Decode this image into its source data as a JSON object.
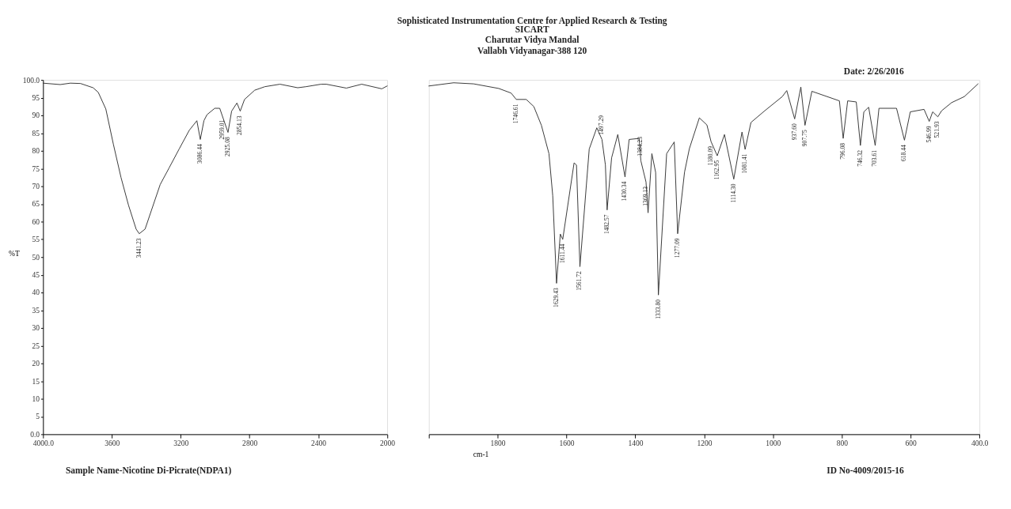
{
  "chart_data": [
    {
      "type": "line",
      "ylabel": "%T",
      "x": [
        4000,
        3900,
        3841,
        3782,
        3709,
        3679,
        3635,
        3591,
        3547,
        3503,
        3459,
        3441,
        3407,
        3370,
        3319,
        3267,
        3209,
        3150,
        3106,
        3086,
        3065,
        3047,
        3002,
        2973,
        2959,
        2925,
        2904,
        2873,
        2854,
        2829,
        2770,
        2711,
        2623,
        2520,
        2472,
        2384,
        2354,
        2237,
        2148,
        2031,
        2000
      ],
      "series": [
        {
          "color": "#333333",
          "values": [
            99.1,
            98.7,
            99.1,
            99.0,
            97.8,
            96.5,
            91.8,
            81.8,
            72.5,
            64.6,
            57.9,
            56.6,
            57.9,
            63.2,
            70.5,
            75.2,
            80.5,
            85.8,
            88.5,
            83.2,
            88.5,
            90.2,
            92.0,
            92.0,
            90.0,
            85.2,
            91.2,
            93.5,
            91.2,
            94.5,
            97.1,
            98.1,
            98.8,
            97.8,
            98.1,
            98.8,
            98.8,
            97.7,
            98.8,
            97.5,
            98.3
          ]
        }
      ],
      "xlim": [
        4000,
        2000
      ],
      "xticks": [
        {
          "value": 4000,
          "label": "4000.0"
        },
        3600,
        3200,
        2800,
        2400,
        2000
      ],
      "ylim": [
        0,
        100
      ],
      "yticks": [
        {
          "value": 0,
          "label": "0.0"
        },
        5,
        10,
        15,
        20,
        25,
        30,
        35,
        40,
        45,
        50,
        55,
        60,
        65,
        70,
        75,
        80,
        85,
        90,
        95,
        {
          "value": 100,
          "label": "100.0"
        }
      ],
      "grid": false,
      "legend": false,
      "marker": "none",
      "line_style": "solid",
      "annotations": [
        {
          "text": "3441.23",
          "x": 3441,
          "y": 56.6
        },
        {
          "text": "3086.44",
          "x": 3086,
          "y": 83.2
        },
        {
          "text": "2959.01",
          "x": 2959,
          "y": 90.0
        },
        {
          "text": "2925.08",
          "x": 2925,
          "y": 85.2
        },
        {
          "text": "2854.13",
          "x": 2854,
          "y": 91.2
        },
        "Sample Name-Nicotine Di-Picrate(NDPA1)"
      ]
    },
    {
      "type": "line",
      "title": "Sophisticated Instrumentation Centre for Applied Research & Testing",
      "subtitle": "SICART\nCharutar Vidya Mandal\nVallabh Vidyanagar-388 120",
      "xlabel": "cm-1",
      "x": [
        2000,
        1928,
        1870,
        1797,
        1761,
        1746,
        1717,
        1695,
        1673,
        1651,
        1640,
        1629,
        1618,
        1611,
        1578,
        1571,
        1561,
        1534,
        1512,
        1497,
        1487,
        1482,
        1469,
        1451,
        1430,
        1418,
        1389,
        1384,
        1369,
        1363,
        1352,
        1341,
        1333,
        1309,
        1287,
        1277,
        1257,
        1243,
        1214,
        1192,
        1180,
        1162,
        1141,
        1114,
        1090,
        1081,
        1064,
        1024,
        973,
        960,
        937,
        919,
        907,
        887,
        807,
        796,
        783,
        758,
        746,
        736,
        722,
        703,
        692,
        641,
        618,
        601,
        561,
        546,
        536,
        521,
        510,
        481,
        444,
        404
      ],
      "series": [
        {
          "color": "#333333",
          "values": [
            98.3,
            99.2,
            98.9,
            97.6,
            96.3,
            94.5,
            94.5,
            92.5,
            87.2,
            79.2,
            67.3,
            42.6,
            56.5,
            55.0,
            76.6,
            76.0,
            47.3,
            80.5,
            86.5,
            83.2,
            76.0,
            63.3,
            78.0,
            84.6,
            72.6,
            83.2,
            83.5,
            77.2,
            71.2,
            62.5,
            79.2,
            73.9,
            39.3,
            79.2,
            82.5,
            56.6,
            74.0,
            80.6,
            89.3,
            87.3,
            82.6,
            78.6,
            84.6,
            72.0,
            85.3,
            80.4,
            88.0,
            91.3,
            95.3,
            97.0,
            89.0,
            98.0,
            87.2,
            96.8,
            94.1,
            83.5,
            94.1,
            93.8,
            81.5,
            91.0,
            92.3,
            81.5,
            92.0,
            92.0,
            83.0,
            91.0,
            91.7,
            88.3,
            91.0,
            89.6,
            91.3,
            93.6,
            95.3,
            98.9
          ]
        }
      ],
      "xlim": [
        2000,
        400
      ],
      "xticks": [
        {
          "value": 2000,
          "label": null
        },
        1800,
        1600,
        1400,
        1200,
        1000,
        800,
        600,
        {
          "value": 400,
          "label": "400.0"
        }
      ],
      "ylim": [
        0,
        100
      ],
      "tick_labels": "x",
      "grid": false,
      "legend": false,
      "marker": "none",
      "line_style": "solid",
      "annotations": [
        {
          "text": "1746.61",
          "x": 1746,
          "y": 94.5
        },
        {
          "text": "1629.43",
          "x": 1629,
          "y": 42.6
        },
        {
          "text": "1611.44",
          "x": 1611,
          "y": 55.0
        },
        {
          "text": "1561.72",
          "x": 1561,
          "y": 47.3
        },
        {
          "text": "1497.29",
          "x": 1497,
          "y": 83.2
        },
        {
          "text": "1482.57",
          "x": 1482,
          "y": 63.3
        },
        {
          "text": "1430.34",
          "x": 1430,
          "y": 72.6
        },
        {
          "text": "1384.23",
          "x": 1384,
          "y": 77.2
        },
        {
          "text": "1369.13",
          "x": 1369,
          "y": 71.2
        },
        {
          "text": "1333.80",
          "x": 1333,
          "y": 39.3
        },
        {
          "text": "1277.09",
          "x": 1277,
          "y": 56.6
        },
        {
          "text": "1180.09",
          "x": 1180,
          "y": 82.6
        },
        {
          "text": "1162.95",
          "x": 1162,
          "y": 78.6
        },
        {
          "text": "1114.30",
          "x": 1114,
          "y": 72.0
        },
        {
          "text": "1081.41",
          "x": 1081,
          "y": 80.4
        },
        {
          "text": "937.60",
          "x": 937,
          "y": 89.0
        },
        {
          "text": "907.75",
          "x": 907,
          "y": 87.2
        },
        {
          "text": "796.08",
          "x": 796,
          "y": 83.5
        },
        {
          "text": "746.32",
          "x": 746,
          "y": 81.5
        },
        {
          "text": "703.61",
          "x": 703,
          "y": 81.5
        },
        {
          "text": "618.44",
          "x": 618,
          "y": 83.0
        },
        {
          "text": "546.99",
          "x": 546,
          "y": 88.3
        },
        {
          "text": "521.93",
          "x": 521,
          "y": 89.6
        },
        "Date: 2/26/2016",
        "ID No-4009/2015-16"
      ]
    }
  ]
}
